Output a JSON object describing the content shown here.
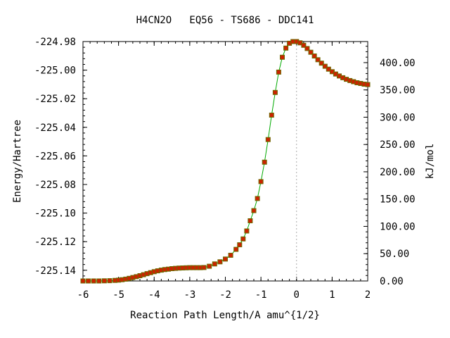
{
  "chart_data": {
    "type": "line",
    "title": "H4CN2O   EQ56 - TS686 - DDC141",
    "xlabel": "Reaction Path Length/A amu^{1/2}",
    "ylabel": "Energy/Hartree",
    "y2label": "kJ/mol",
    "xlim": [
      -6,
      2
    ],
    "ylim": [
      -225.1475,
      -224.98
    ],
    "y2lim": [
      0,
      438.6
    ],
    "x_ticks": [
      -6,
      -5,
      -4,
      -3,
      -2,
      -1,
      0,
      1,
      2
    ],
    "x_tick_labels": [
      "-6",
      "-5",
      "-4",
      "-3",
      "-2",
      "-1",
      "0",
      "1",
      "2"
    ],
    "y_ticks": [
      -224.98,
      -225.0,
      -225.02,
      -225.04,
      -225.06,
      -225.08,
      -225.1,
      -225.12,
      -225.14
    ],
    "y_tick_labels": [
      "-224.98",
      "-225.00",
      "-225.02",
      "-225.04",
      "-225.06",
      "-225.08",
      "-225.10",
      "-225.12",
      "-225.14"
    ],
    "y2_ticks": [
      0,
      50,
      100,
      150,
      200,
      250,
      300,
      350,
      400
    ],
    "y2_tick_labels": [
      "0.00",
      "50.00",
      "100.00",
      "150.00",
      "200.00",
      "250.00",
      "300.00",
      "350.00",
      "400.00"
    ],
    "ts_x": 0,
    "grid": false,
    "colors": {
      "line": "#00aa00",
      "marker": "#cc2200",
      "marker_outline": "#6b6b00",
      "ts_line": "#aaaaaa"
    },
    "series": [
      {
        "points": [
          [
            -6.0,
            -225.1475
          ],
          [
            -5.85,
            -225.1475
          ],
          [
            -5.7,
            -225.1475
          ],
          [
            -5.55,
            -225.1475
          ],
          [
            -5.4,
            -225.1474
          ],
          [
            -5.25,
            -225.1473
          ],
          [
            -5.1,
            -225.1471
          ],
          [
            -5.0,
            -225.1469
          ],
          [
            -4.9,
            -225.1466
          ],
          [
            -4.8,
            -225.1462
          ],
          [
            -4.7,
            -225.1457
          ],
          [
            -4.6,
            -225.1451
          ],
          [
            -4.5,
            -225.1445
          ],
          [
            -4.4,
            -225.1438
          ],
          [
            -4.3,
            -225.1431
          ],
          [
            -4.2,
            -225.1424
          ],
          [
            -4.1,
            -225.1417
          ],
          [
            -4.0,
            -225.141
          ],
          [
            -3.9,
            -225.1404
          ],
          [
            -3.8,
            -225.1399
          ],
          [
            -3.7,
            -225.1395
          ],
          [
            -3.6,
            -225.1392
          ],
          [
            -3.5,
            -225.1389
          ],
          [
            -3.4,
            -225.1387
          ],
          [
            -3.3,
            -225.1385
          ],
          [
            -3.2,
            -225.1384
          ],
          [
            -3.1,
            -225.1383
          ],
          [
            -3.0,
            -225.1382
          ],
          [
            -2.9,
            -225.1382
          ],
          [
            -2.8,
            -225.1382
          ],
          [
            -2.7,
            -225.1382
          ],
          [
            -2.6,
            -225.1381
          ],
          [
            -2.45,
            -225.1372
          ],
          [
            -2.3,
            -225.1356
          ],
          [
            -2.15,
            -225.1341
          ],
          [
            -2.0,
            -225.1322
          ],
          [
            -1.85,
            -225.1295
          ],
          [
            -1.7,
            -225.1254
          ],
          [
            -1.6,
            -225.1222
          ],
          [
            -1.5,
            -225.1181
          ],
          [
            -1.4,
            -225.1125
          ],
          [
            -1.3,
            -225.1054
          ],
          [
            -1.2,
            -225.0983
          ],
          [
            -1.1,
            -225.0898
          ],
          [
            -1.0,
            -225.078
          ],
          [
            -0.9,
            -225.0644
          ],
          [
            -0.8,
            -225.0486
          ],
          [
            -0.7,
            -225.0315
          ],
          [
            -0.6,
            -225.0156
          ],
          [
            -0.5,
            -225.0014
          ],
          [
            -0.4,
            -224.991
          ],
          [
            -0.3,
            -224.9846
          ],
          [
            -0.2,
            -224.9812
          ],
          [
            -0.1,
            -224.98
          ],
          [
            0.0,
            -224.98
          ],
          [
            0.1,
            -224.9809
          ],
          [
            0.2,
            -224.9826
          ],
          [
            0.3,
            -224.9849
          ],
          [
            0.4,
            -224.9875
          ],
          [
            0.5,
            -224.9901
          ],
          [
            0.6,
            -224.9927
          ],
          [
            0.7,
            -224.9951
          ],
          [
            0.8,
            -224.9973
          ],
          [
            0.9,
            -224.9993
          ],
          [
            1.0,
            -225.0011
          ],
          [
            1.1,
            -225.0027
          ],
          [
            1.2,
            -225.0041
          ],
          [
            1.3,
            -225.0053
          ],
          [
            1.4,
            -225.0064
          ],
          [
            1.5,
            -225.0073
          ],
          [
            1.6,
            -225.0081
          ],
          [
            1.7,
            -225.0088
          ],
          [
            1.8,
            -225.0093
          ],
          [
            1.9,
            -225.0098
          ],
          [
            2.0,
            -225.0101
          ]
        ]
      }
    ]
  }
}
